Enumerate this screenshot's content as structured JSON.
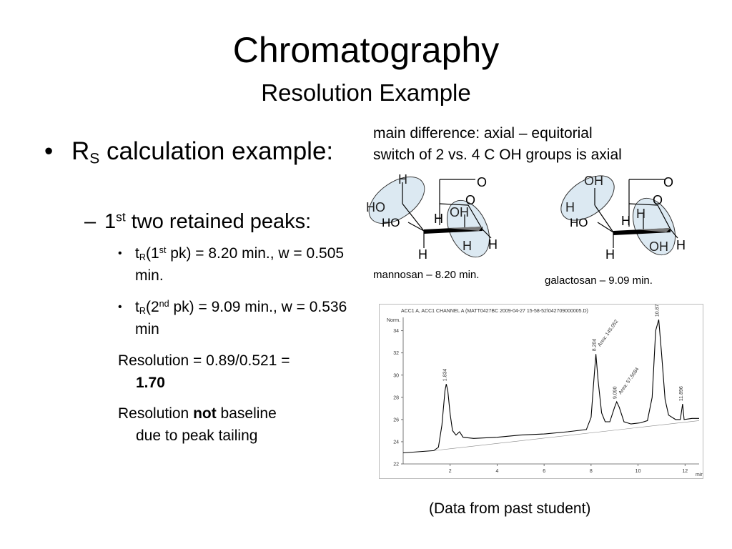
{
  "slide": {
    "title": "Chromatography",
    "subtitle": "Resolution Example"
  },
  "bullets": {
    "level1": {
      "marker": "•",
      "r": "R",
      "r_sub": "S",
      "rest": " calculation example:"
    },
    "level2": {
      "marker": "–",
      "pre": "1",
      "sup": "st",
      "rest": " two retained peaks:"
    },
    "peak1": {
      "marker": "•",
      "t": "t",
      "t_sub": "R",
      "mid": "(1",
      "sup": "st",
      "rest": " pk) = 8.20 min., w = 0.505 min."
    },
    "peak2": {
      "marker": "•",
      "t": "t",
      "t_sub": "R",
      "mid": "(2",
      "sup": "nd",
      "rest": " pk) = 9.09 min., w = 0.536 min"
    },
    "resolution": {
      "line1": "Resolution = 0.89/0.521 =",
      "value": "1.70"
    },
    "baseline": {
      "pre": "Resolution ",
      "bold": "not",
      "post": " baseline",
      "line2": "due to peak tailing"
    }
  },
  "note": {
    "line1": "main difference: axial – equitorial",
    "line2": "switch of 2 vs. 4 C OH groups is axial"
  },
  "mannosan": {
    "caption": "mannosan – 8.20 min.",
    "atoms": {
      "h_top": "H",
      "o_ring": "O",
      "ho_left": "HO",
      "o_bridge": "O",
      "oh": "OH",
      "ho_c": "HO",
      "h_mid": "H",
      "h_bot_right": "H",
      "h_right": "H",
      "h_bottom": "H"
    }
  },
  "galactosan": {
    "caption": "galactosan – 9.09 min.",
    "atoms": {
      "oh_top": "OH",
      "o_ring": "O",
      "h_left": "H",
      "o_bridge": "O",
      "h_c": "H",
      "ho_c": "HO",
      "h_mid": "H",
      "oh_bot": "OH",
      "h_right": "H",
      "h_bottom": "H"
    }
  },
  "chart_data": {
    "type": "line",
    "header": "ACC1 A, ACC1 CHANNEL A (MATT0427BC 2009-04-27 15-58-52\\042709000005.D)",
    "ylabel": "Norm.",
    "xlabel": "min",
    "xlim": [
      0,
      12.6
    ],
    "ylim": [
      22,
      35.2
    ],
    "x_ticks": [
      2,
      4,
      6,
      8,
      10,
      12
    ],
    "y_ticks": [
      22,
      24,
      26,
      28,
      30,
      32,
      34
    ],
    "series": [
      {
        "points": [
          [
            0,
            23.0
          ],
          [
            1.3,
            23.2
          ],
          [
            1.5,
            23.5
          ],
          [
            1.65,
            25.5
          ],
          [
            1.78,
            28.6
          ],
          [
            1.834,
            29.2
          ],
          [
            1.9,
            28.6
          ],
          [
            2.0,
            26.5
          ],
          [
            2.1,
            25.0
          ],
          [
            2.25,
            24.6
          ],
          [
            2.4,
            24.9
          ],
          [
            2.55,
            24.4
          ],
          [
            3,
            24.3
          ],
          [
            4,
            24.4
          ],
          [
            5,
            24.6
          ],
          [
            6,
            24.7
          ],
          [
            7,
            24.9
          ],
          [
            7.8,
            25.1
          ],
          [
            8.0,
            26.2
          ],
          [
            8.1,
            29.0
          ],
          [
            8.204,
            31.9
          ],
          [
            8.3,
            29.5
          ],
          [
            8.45,
            26.6
          ],
          [
            8.6,
            25.8
          ],
          [
            8.8,
            25.8
          ],
          [
            9.0,
            27.1
          ],
          [
            9.09,
            27.6
          ],
          [
            9.2,
            27.1
          ],
          [
            9.4,
            25.8
          ],
          [
            9.7,
            25.6
          ],
          [
            10.1,
            25.7
          ],
          [
            10.4,
            25.9
          ],
          [
            10.6,
            28.0
          ],
          [
            10.75,
            34.0
          ],
          [
            10.879,
            35.0
          ],
          [
            11.0,
            32.0
          ],
          [
            11.15,
            27.8
          ],
          [
            11.3,
            26.4
          ],
          [
            11.6,
            26.0
          ],
          [
            11.8,
            26.0
          ],
          [
            11.896,
            27.4
          ],
          [
            11.96,
            26.0
          ],
          [
            12.3,
            26.1
          ],
          [
            12.6,
            26.1
          ]
        ]
      }
    ],
    "baseline": [
      [
        1.3,
        23.2
      ],
      [
        12.6,
        25.9
      ]
    ],
    "peak_labels": [
      {
        "x": 1.834,
        "y": 29.2,
        "label": "1.834"
      },
      {
        "x": 8.204,
        "y": 31.9,
        "label": "8.204",
        "area": "Area: 145.052"
      },
      {
        "x": 9.09,
        "y": 27.6,
        "label": "9.090",
        "area": "Area: 57.5684"
      },
      {
        "x": 10.879,
        "y": 35.0,
        "label": "10.879"
      },
      {
        "x": 11.896,
        "y": 27.4,
        "label": "11.896"
      }
    ]
  },
  "footer": {
    "note": "(Data from past student)"
  }
}
